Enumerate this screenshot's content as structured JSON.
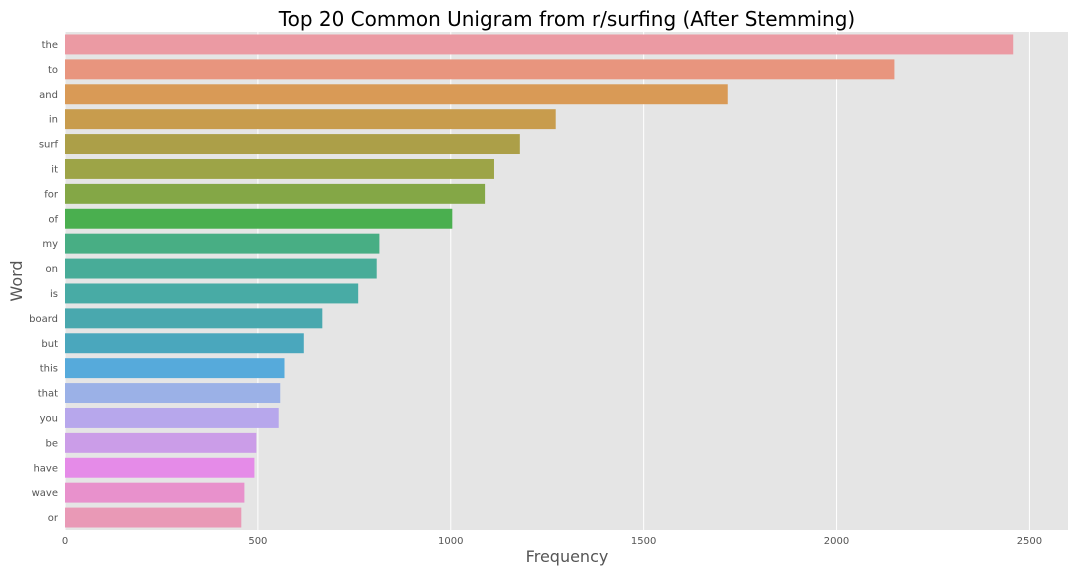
{
  "chart_data": {
    "type": "bar",
    "orientation": "horizontal",
    "title": "Top 20 Common Unigram from r/surfing (After Stemming)",
    "xlabel": "Frequency",
    "ylabel": "Word",
    "xlim": [
      0,
      2600
    ],
    "xticks": [
      0,
      500,
      1000,
      1500,
      2000,
      2500
    ],
    "grid": true,
    "categories": [
      "the",
      "to",
      "and",
      "in",
      "surf",
      "it",
      "for",
      "of",
      "my",
      "on",
      "is",
      "board",
      "but",
      "this",
      "that",
      "you",
      "be",
      "have",
      "wave",
      "or"
    ],
    "values": [
      2458,
      2150,
      1718,
      1272,
      1179,
      1112,
      1089,
      1004,
      815,
      808,
      760,
      667,
      619,
      569,
      558,
      554,
      496,
      491,
      465,
      457
    ],
    "colors": [
      "#eb9aa3",
      "#e8957e",
      "#d99a56",
      "#c89c4d",
      "#ac9f48",
      "#9da447",
      "#84a746",
      "#4aaf4f",
      "#48ae84",
      "#48ac98",
      "#48aba5",
      "#49a8ae",
      "#4aa7bd",
      "#56aadb",
      "#9bb1e7",
      "#b7a7ec",
      "#cb9de8",
      "#e58be8",
      "#e891cc",
      "#e999b6"
    ],
    "background": "#e5e5e5",
    "grid_color": "#ffffff"
  }
}
